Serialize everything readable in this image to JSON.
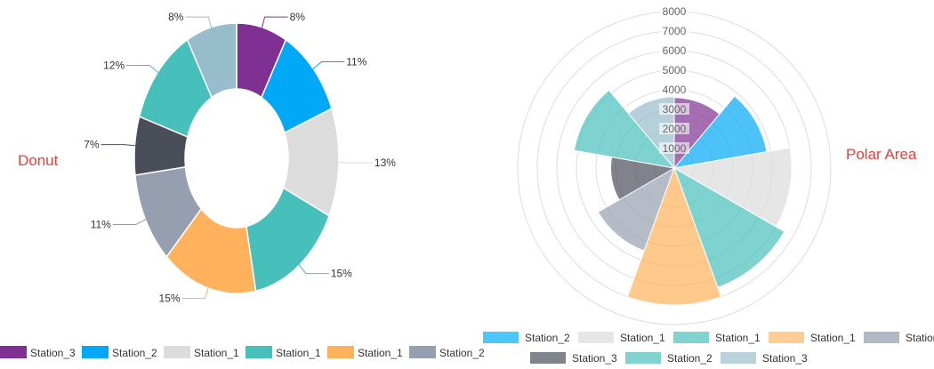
{
  "labels": {
    "donut": "Donut",
    "polar": "Polar Area"
  },
  "chart_data": [
    {
      "type": "pie",
      "variant": "donut",
      "title": "",
      "slices": [
        {
          "name": "Station_3",
          "value": 8,
          "label": "8%",
          "color": "#7f3193"
        },
        {
          "name": "Station_2",
          "value": 11,
          "label": "11%",
          "color": "#00a8f5"
        },
        {
          "name": "Station_1",
          "value": 13,
          "label": "13%",
          "color": "#dcdcdc"
        },
        {
          "name": "Station_1",
          "value": 15,
          "label": "15%",
          "color": "#47c0bc"
        },
        {
          "name": "Station_1",
          "value": 15,
          "label": "15%",
          "color": "#ffb25b"
        },
        {
          "name": "Station_2",
          "value": 11,
          "label": "11%",
          "color": "#969fb0"
        },
        {
          "name": "Station_3",
          "value": 7,
          "label": "7%",
          "color": "#4a4e58"
        },
        {
          "name": "Station_3",
          "value": 12,
          "label": "12%",
          "color": "#47c0bc"
        },
        {
          "name": "Station_1",
          "value": 8,
          "label": "8%",
          "color": "#97bccc"
        }
      ],
      "legend": {
        "position": "bottom",
        "entries": [
          {
            "name": "Station_3",
            "color": "#7f3193"
          },
          {
            "name": "Station_2",
            "color": "#00a8f5"
          },
          {
            "name": "Station_1",
            "color": "#dcdcdc"
          },
          {
            "name": "Station_1",
            "color": "#47c0bc"
          },
          {
            "name": "Station_1",
            "color": "#ffb25b"
          },
          {
            "name": "Station_2",
            "color": "#969fb0"
          }
        ]
      }
    },
    {
      "type": "polar-area",
      "title": "",
      "radial_axis": {
        "min": 0,
        "max": 8000,
        "step": 1000,
        "ticks": [
          "1000",
          "2000",
          "3000",
          "4000",
          "5000",
          "6000",
          "7000",
          "8000"
        ]
      },
      "segments": [
        {
          "name": "Station_3",
          "value": 3600,
          "color": "#7f3193"
        },
        {
          "name": "Station_2",
          "value": 4800,
          "color": "#00a8f5"
        },
        {
          "name": "Station_1",
          "value": 6000,
          "color": "#dcdcdc"
        },
        {
          "name": "Station_1",
          "value": 6500,
          "color": "#47c0bc"
        },
        {
          "name": "Station_1",
          "value": 7000,
          "color": "#ffb25b"
        },
        {
          "name": "Station_2",
          "value": 4500,
          "color": "#969fb0"
        },
        {
          "name": "Station_3",
          "value": 3250,
          "color": "#4a4e58"
        },
        {
          "name": "Station_2",
          "value": 5200,
          "color": "#47c0bc"
        },
        {
          "name": "Station_3",
          "value": 3650,
          "color": "#97bccc"
        }
      ],
      "legend": {
        "position": "bottom",
        "rows": [
          [
            {
              "name": "Station_2",
              "color": "#4dc6f8"
            },
            {
              "name": "Station_1",
              "color": "#e6e6e6"
            },
            {
              "name": "Station_1",
              "color": "#80d3d0"
            },
            {
              "name": "Station_1",
              "color": "#ffcd94"
            },
            {
              "name": "Station",
              "color": "#b2b9c6"
            }
          ],
          [
            {
              "name": "Station_3",
              "color": "#80848d"
            },
            {
              "name": "Station_2",
              "color": "#80d3d0"
            },
            {
              "name": "Station_3",
              "color": "#b9d2dc"
            }
          ]
        ]
      }
    }
  ]
}
